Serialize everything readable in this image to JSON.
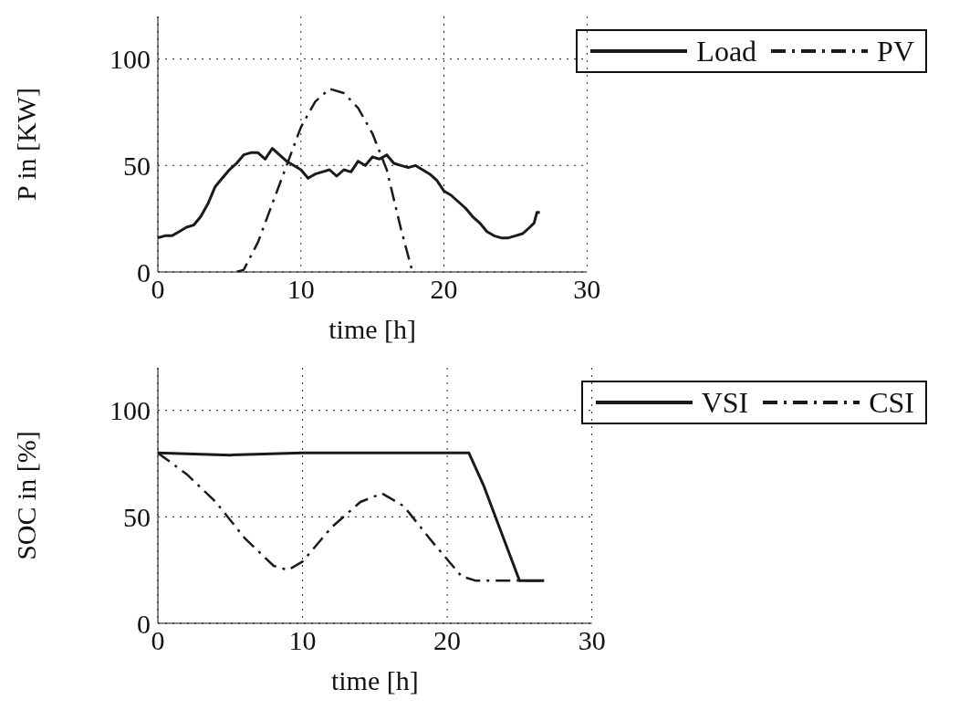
{
  "chart_data": [
    {
      "type": "line",
      "xlabel": "time [h]",
      "ylabel": "P in [KW]",
      "xlim": [
        0,
        30
      ],
      "xticks": [
        0,
        10,
        20,
        30
      ],
      "ylim": [
        0,
        120
      ],
      "yticks": [
        0,
        50,
        100
      ],
      "grid": true,
      "legend": "top right",
      "series": [
        {
          "name": "Load",
          "color": "#1a1a1a",
          "line_style": "solid",
          "x": [
            0,
            0.5,
            1,
            1.5,
            2,
            2.5,
            3,
            3.5,
            4,
            4.5,
            5,
            5.5,
            6,
            6.5,
            7,
            7.5,
            8,
            8.5,
            9,
            9.5,
            10,
            10.5,
            11,
            11.5,
            12,
            12.5,
            13,
            13.5,
            14,
            14.5,
            15,
            15.5,
            16,
            16.5,
            17,
            17.5,
            18,
            18.5,
            19,
            19.5,
            20,
            20.5,
            21,
            21.5,
            22,
            22.5,
            23,
            23.5,
            24,
            24.5,
            25,
            25.5,
            26,
            26.3,
            26.5,
            26.7
          ],
          "values": [
            16,
            17,
            17,
            19,
            21,
            22,
            26,
            32,
            40,
            44,
            48,
            51,
            55,
            56,
            56,
            53,
            58,
            55,
            52,
            50,
            48,
            44,
            46,
            47,
            48,
            45,
            48,
            47,
            52,
            50,
            54,
            53,
            55,
            51,
            50,
            49,
            50,
            48,
            46,
            43,
            38,
            36,
            33,
            30,
            26,
            23,
            19,
            17,
            16,
            16,
            17,
            18,
            21,
            23,
            28,
            28
          ]
        },
        {
          "name": "PV",
          "color": "#1a1a1a",
          "line_style": "dashed",
          "x": [
            5.5,
            6,
            7,
            8,
            9,
            10,
            11,
            12,
            13,
            14,
            15,
            16,
            17,
            17.8
          ],
          "values": [
            0,
            1,
            14,
            32,
            50,
            68,
            80,
            86,
            84,
            77,
            65,
            48,
            20,
            0
          ]
        }
      ]
    },
    {
      "type": "line",
      "xlabel": "time [h]",
      "ylabel": "SOC in [%]",
      "xlim": [
        0,
        30
      ],
      "xticks": [
        0,
        10,
        20,
        30
      ],
      "ylim": [
        0,
        120
      ],
      "yticks": [
        0,
        50,
        100
      ],
      "grid": true,
      "legend": "top right",
      "series": [
        {
          "name": "VSI",
          "color": "#1a1a1a",
          "line_style": "solid",
          "x": [
            0,
            5,
            10,
            15,
            21.5,
            22.5,
            25,
            26.7
          ],
          "values": [
            80,
            79,
            80,
            80,
            80,
            65,
            20,
            20
          ]
        },
        {
          "name": "CSI",
          "color": "#1a1a1a",
          "line_style": "dashed",
          "x": [
            0,
            2,
            4,
            6,
            8,
            9,
            10,
            12,
            14,
            15.5,
            17,
            19,
            21,
            22,
            26.7
          ],
          "values": [
            80,
            70,
            57,
            40,
            27,
            25,
            29,
            45,
            57,
            61,
            55,
            38,
            22,
            20,
            20
          ]
        }
      ]
    }
  ]
}
